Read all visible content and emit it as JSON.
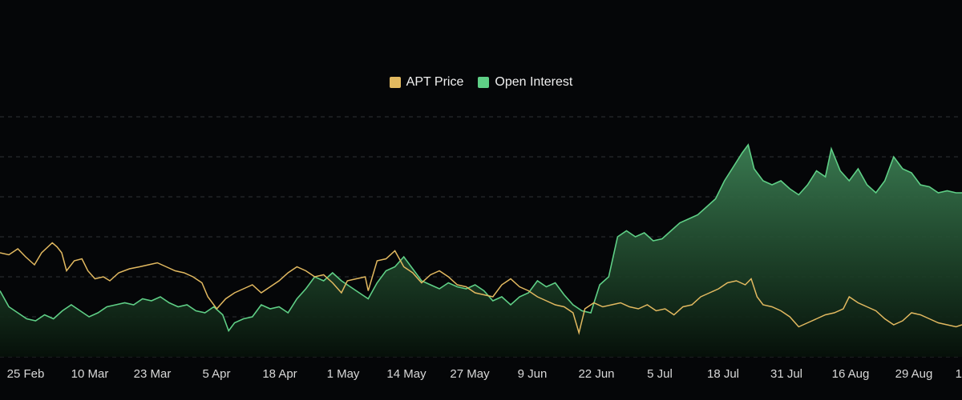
{
  "colors": {
    "price": "#e2b960",
    "open_interest": "#5fcf86",
    "area_top": "#3c7f54",
    "area_bottom": "#061009",
    "grid": "#2e3136",
    "background": "#050608"
  },
  "chart_data": {
    "type": "line",
    "title": "",
    "xlabel": "",
    "ylabel": "",
    "grid": true,
    "legend_position": "top-center",
    "legend": [
      {
        "name": "APT Price",
        "color": "#e2b960"
      },
      {
        "name": "Open Interest",
        "color": "#5fcf86"
      }
    ],
    "x_ticks": [
      "25 Feb",
      "10 Mar",
      "23 Mar",
      "5 Apr",
      "18 Apr",
      "1 May",
      "14 May",
      "27 May",
      "9 Jun",
      "22 Jun",
      "5 Jul",
      "18 Jul",
      "31 Jul",
      "16 Aug",
      "29 Aug",
      "1"
    ],
    "series": [
      {
        "name": "APT Price",
        "type": "line",
        "values": [
          [
            0,
            5.2
          ],
          [
            1.5,
            5.1
          ],
          [
            3,
            5.4
          ],
          [
            4.3,
            5.0
          ],
          [
            5.8,
            4.6
          ],
          [
            7,
            5.2
          ],
          [
            8.8,
            5.7
          ],
          [
            9.6,
            5.5
          ],
          [
            10.4,
            5.2
          ],
          [
            11.2,
            4.3
          ],
          [
            12.5,
            4.8
          ],
          [
            13.8,
            4.9
          ],
          [
            14.8,
            4.3
          ],
          [
            16,
            3.9
          ],
          [
            17.4,
            4.0
          ],
          [
            18.5,
            3.8
          ],
          [
            20,
            4.2
          ],
          [
            21.8,
            4.4
          ],
          [
            23.5,
            4.5
          ],
          [
            25,
            4.6
          ],
          [
            26.5,
            4.7
          ],
          [
            28,
            4.5
          ],
          [
            29.5,
            4.3
          ],
          [
            31,
            4.2
          ],
          [
            32.5,
            4.0
          ],
          [
            34,
            3.7
          ],
          [
            35,
            3.0
          ],
          [
            36.5,
            2.4
          ],
          [
            38,
            2.9
          ],
          [
            39.5,
            3.2
          ],
          [
            41,
            3.4
          ],
          [
            42.5,
            3.6
          ],
          [
            44,
            3.2
          ],
          [
            45.5,
            3.5
          ],
          [
            47,
            3.8
          ],
          [
            48.5,
            4.2
          ],
          [
            50,
            4.5
          ],
          [
            51.5,
            4.3
          ],
          [
            53,
            4.0
          ],
          [
            54.5,
            4.1
          ],
          [
            56,
            3.7
          ],
          [
            57.5,
            3.2
          ],
          [
            58.5,
            3.8
          ],
          [
            60,
            3.9
          ],
          [
            61.5,
            4.0
          ],
          [
            62,
            3.3
          ],
          [
            63.5,
            4.8
          ],
          [
            65,
            4.9
          ],
          [
            66.5,
            5.3
          ],
          [
            68,
            4.5
          ],
          [
            69.5,
            4.2
          ],
          [
            71,
            3.7
          ],
          [
            72.5,
            4.1
          ],
          [
            74,
            4.3
          ],
          [
            75.5,
            4.0
          ],
          [
            77,
            3.6
          ],
          [
            78.5,
            3.5
          ],
          [
            80,
            3.2
          ],
          [
            81.5,
            3.1
          ],
          [
            83,
            3.0
          ],
          [
            84.5,
            3.6
          ],
          [
            86,
            3.9
          ],
          [
            87.5,
            3.5
          ],
          [
            89,
            3.3
          ],
          [
            90.5,
            3.0
          ],
          [
            92,
            2.8
          ],
          [
            93.5,
            2.6
          ],
          [
            95,
            2.5
          ],
          [
            96.5,
            2.2
          ],
          [
            97.5,
            1.2
          ],
          [
            98.5,
            2.4
          ],
          [
            100,
            2.7
          ],
          [
            101.5,
            2.5
          ],
          [
            103,
            2.6
          ],
          [
            104.5,
            2.7
          ],
          [
            106,
            2.5
          ],
          [
            107.5,
            2.4
          ],
          [
            109,
            2.6
          ],
          [
            110.5,
            2.3
          ],
          [
            112,
            2.4
          ],
          [
            113.5,
            2.1
          ],
          [
            115,
            2.5
          ],
          [
            116.5,
            2.6
          ],
          [
            118,
            3.0
          ],
          [
            119.5,
            3.2
          ],
          [
            121,
            3.4
          ],
          [
            122.5,
            3.7
          ],
          [
            124,
            3.8
          ],
          [
            125.5,
            3.6
          ],
          [
            126.5,
            3.9
          ],
          [
            127.5,
            3.0
          ],
          [
            128.5,
            2.6
          ],
          [
            130,
            2.5
          ],
          [
            131.5,
            2.3
          ],
          [
            133,
            2.0
          ],
          [
            134.5,
            1.5
          ],
          [
            136,
            1.7
          ],
          [
            137.5,
            1.9
          ],
          [
            139,
            2.1
          ],
          [
            140.5,
            2.2
          ],
          [
            142,
            2.4
          ],
          [
            143,
            3.0
          ],
          [
            144.5,
            2.7
          ],
          [
            146,
            2.5
          ],
          [
            147.5,
            2.3
          ],
          [
            149,
            1.9
          ],
          [
            150.5,
            1.6
          ],
          [
            152,
            1.8
          ],
          [
            153.5,
            2.2
          ],
          [
            155,
            2.1
          ],
          [
            156.5,
            1.9
          ],
          [
            158,
            1.7
          ],
          [
            159.5,
            1.6
          ],
          [
            161,
            1.5
          ],
          [
            162,
            1.6
          ]
        ]
      },
      {
        "name": "Open Interest",
        "type": "area",
        "values": [
          [
            0,
            3.3
          ],
          [
            1.5,
            2.5
          ],
          [
            3,
            2.2
          ],
          [
            4.5,
            1.9
          ],
          [
            6,
            1.8
          ],
          [
            7.5,
            2.1
          ],
          [
            9,
            1.9
          ],
          [
            10.5,
            2.3
          ],
          [
            12,
            2.6
          ],
          [
            13.5,
            2.3
          ],
          [
            15,
            2.0
          ],
          [
            16.5,
            2.2
          ],
          [
            18,
            2.5
          ],
          [
            19.5,
            2.6
          ],
          [
            21,
            2.7
          ],
          [
            22.5,
            2.6
          ],
          [
            24,
            2.9
          ],
          [
            25.5,
            2.8
          ],
          [
            27,
            3.0
          ],
          [
            28.5,
            2.7
          ],
          [
            30,
            2.5
          ],
          [
            31.5,
            2.6
          ],
          [
            33,
            2.3
          ],
          [
            34.5,
            2.2
          ],
          [
            36,
            2.5
          ],
          [
            37.5,
            2.1
          ],
          [
            38.5,
            1.3
          ],
          [
            39.5,
            1.7
          ],
          [
            41,
            1.9
          ],
          [
            42.5,
            2.0
          ],
          [
            44,
            2.6
          ],
          [
            45.5,
            2.4
          ],
          [
            47,
            2.5
          ],
          [
            48.5,
            2.2
          ],
          [
            50,
            2.9
          ],
          [
            51.5,
            3.4
          ],
          [
            53,
            4.0
          ],
          [
            54.5,
            3.8
          ],
          [
            56,
            4.2
          ],
          [
            57.5,
            3.8
          ],
          [
            59,
            3.5
          ],
          [
            60.5,
            3.2
          ],
          [
            62,
            2.9
          ],
          [
            63.5,
            3.7
          ],
          [
            65,
            4.3
          ],
          [
            66.5,
            4.5
          ],
          [
            68,
            5.0
          ],
          [
            69.5,
            4.4
          ],
          [
            71,
            3.8
          ],
          [
            72.5,
            3.6
          ],
          [
            74,
            3.4
          ],
          [
            75.5,
            3.7
          ],
          [
            77,
            3.5
          ],
          [
            78.5,
            3.4
          ],
          [
            80,
            3.6
          ],
          [
            81.5,
            3.3
          ],
          [
            83,
            2.8
          ],
          [
            84.5,
            3.0
          ],
          [
            86,
            2.6
          ],
          [
            87.5,
            3.0
          ],
          [
            89,
            3.2
          ],
          [
            90.5,
            3.8
          ],
          [
            92,
            3.5
          ],
          [
            93.5,
            3.7
          ],
          [
            95,
            3.1
          ],
          [
            96.5,
            2.6
          ],
          [
            98,
            2.3
          ],
          [
            99.5,
            2.2
          ],
          [
            101,
            3.6
          ],
          [
            102.5,
            4.0
          ],
          [
            104,
            6.0
          ],
          [
            105.5,
            6.3
          ],
          [
            107,
            6.0
          ],
          [
            108.5,
            6.2
          ],
          [
            110,
            5.8
          ],
          [
            111.5,
            5.9
          ],
          [
            113,
            6.3
          ],
          [
            114.5,
            6.7
          ],
          [
            116,
            6.9
          ],
          [
            117.5,
            7.1
          ],
          [
            119,
            7.5
          ],
          [
            120.5,
            7.9
          ],
          [
            122,
            8.8
          ],
          [
            123.5,
            9.5
          ],
          [
            125,
            10.2
          ],
          [
            126,
            10.6
          ],
          [
            127,
            9.4
          ],
          [
            128.5,
            8.8
          ],
          [
            130,
            8.6
          ],
          [
            131.5,
            8.8
          ],
          [
            133,
            8.4
          ],
          [
            134.5,
            8.1
          ],
          [
            136,
            8.6
          ],
          [
            137.5,
            9.3
          ],
          [
            139,
            9.0
          ],
          [
            140,
            10.4
          ],
          [
            141.5,
            9.3
          ],
          [
            143,
            8.8
          ],
          [
            144.5,
            9.4
          ],
          [
            146,
            8.6
          ],
          [
            147.5,
            8.2
          ],
          [
            149,
            8.8
          ],
          [
            150.5,
            10.0
          ],
          [
            152,
            9.4
          ],
          [
            153.5,
            9.2
          ],
          [
            155,
            8.6
          ],
          [
            156.5,
            8.5
          ],
          [
            158,
            8.2
          ],
          [
            159.5,
            8.3
          ],
          [
            161,
            8.2
          ],
          [
            162,
            8.2
          ]
        ]
      }
    ]
  }
}
